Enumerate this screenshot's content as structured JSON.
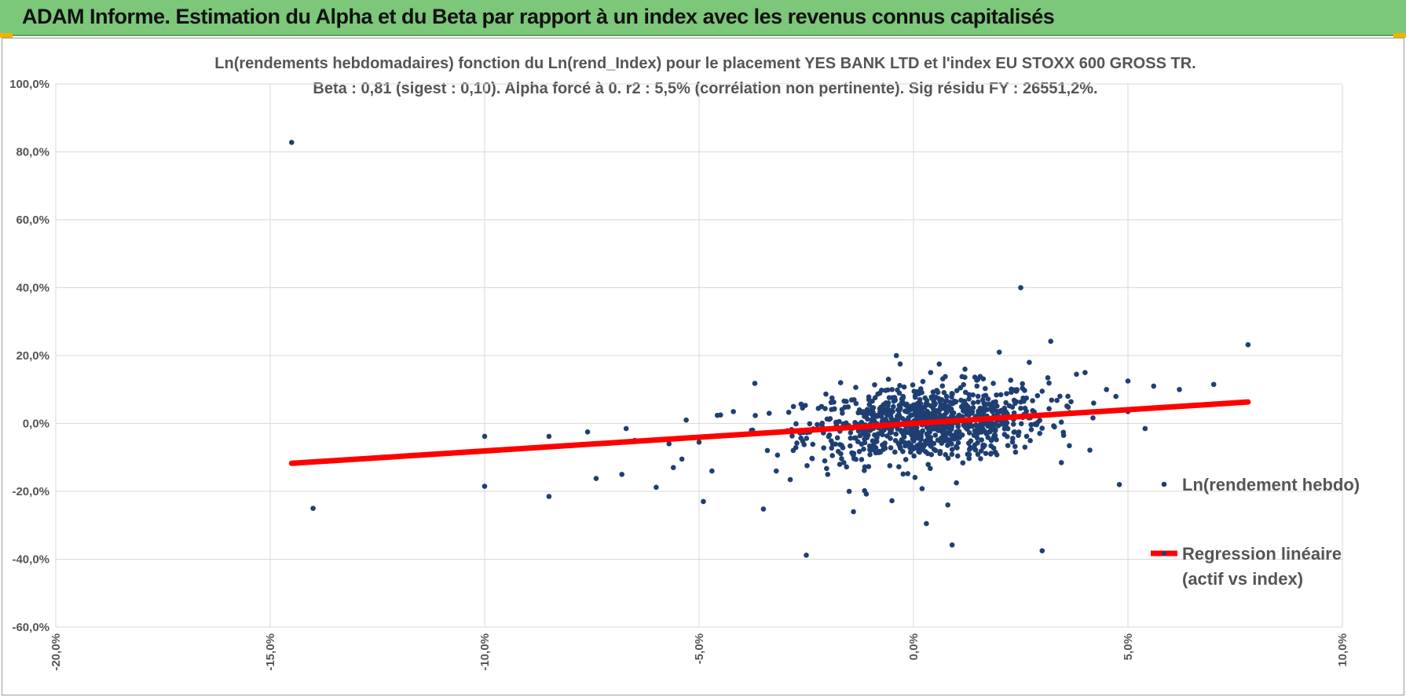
{
  "header": {
    "title": "ADAM Informe. Estimation du Alpha et du Beta par rapport à un index avec les revenus connus capitalisés"
  },
  "colors": {
    "header_bg": "#7cc77a",
    "points": "#1f3f73",
    "regression": "#ff0000",
    "grid": "#d9d9d9"
  },
  "chart_data": {
    "type": "scatter",
    "title_line1": "Ln(rendements hebdomadaires) fonction du Ln(rend_Index) pour le placement YES BANK LTD et l'index EU STOXX 600 GROSS TR.",
    "title_line2": "Beta : 0,81 (sigest : 0,10).  Alpha forcé à 0. r2 : 5,5% (corrélation non pertinente). Sig  résidu FY : 26551,2%.",
    "xlim": [
      -20,
      10
    ],
    "ylim": [
      -60,
      100
    ],
    "x_ticks": [
      -20,
      -15,
      -10,
      -5,
      0,
      5,
      10
    ],
    "x_tick_labels": [
      "-20,0%",
      "-15,0%",
      "-10,0%",
      "-5,0%",
      "0,0%",
      "5,0%",
      "10,0%"
    ],
    "y_ticks": [
      100,
      80,
      60,
      40,
      20,
      0,
      -20,
      -40,
      -60
    ],
    "y_tick_labels": [
      "100,0%",
      "80,0%",
      "60,0%",
      "40,0%",
      "20,0%",
      "0,0%",
      "-20,0%",
      "-40,0%",
      "-60,0%"
    ],
    "grid": true,
    "legend_position": "right",
    "series": [
      {
        "name": "Ln(rendement hebdo)",
        "kind": "points",
        "points": [
          [
            -14.5,
            82.8
          ],
          [
            -14.0,
            -25.0
          ],
          [
            -10.0,
            -18.5
          ],
          [
            -10.0,
            -3.8
          ],
          [
            -8.5,
            -21.5
          ],
          [
            -8.5,
            -3.8
          ],
          [
            -7.6,
            -2.5
          ],
          [
            -7.4,
            -16.2
          ],
          [
            -6.8,
            -15.0
          ],
          [
            -6.7,
            -1.5
          ],
          [
            -6.5,
            -5.0
          ],
          [
            -6.0,
            -18.8
          ],
          [
            -5.7,
            -6.0
          ],
          [
            -5.6,
            -13.0
          ],
          [
            -5.4,
            -10.5
          ],
          [
            -5.3,
            1.0
          ],
          [
            -5.0,
            -5.5
          ],
          [
            -4.9,
            -23.0
          ],
          [
            -4.7,
            -14.0
          ],
          [
            -4.5,
            2.5
          ],
          [
            -4.2,
            3.5
          ],
          [
            -3.7,
            11.8
          ],
          [
            -3.5,
            -25.2
          ],
          [
            -3.2,
            -14.0
          ],
          [
            -2.8,
            5.0
          ],
          [
            -2.5,
            -38.8
          ],
          [
            -2.0,
            -15.0
          ],
          [
            -1.9,
            7.5
          ],
          [
            -1.7,
            12.0
          ],
          [
            -1.5,
            -20.0
          ],
          [
            -1.4,
            -26.0
          ],
          [
            -1.1,
            -20.8
          ],
          [
            -0.5,
            10.0
          ],
          [
            -0.4,
            20.0
          ],
          [
            0.2,
            -19.2
          ],
          [
            0.3,
            -29.5
          ],
          [
            0.4,
            15.0
          ],
          [
            0.6,
            17.5
          ],
          [
            0.8,
            -24.0
          ],
          [
            0.9,
            -35.8
          ],
          [
            1.0,
            -17.5
          ],
          [
            1.2,
            16.0
          ],
          [
            2.0,
            21.0
          ],
          [
            2.5,
            40.0
          ],
          [
            2.7,
            18.0
          ],
          [
            3.0,
            -37.5
          ],
          [
            3.2,
            24.2
          ],
          [
            3.5,
            -3.5
          ],
          [
            3.8,
            14.5
          ],
          [
            4.0,
            15.0
          ],
          [
            4.5,
            10.0
          ],
          [
            4.8,
            -18.0
          ],
          [
            5.0,
            12.5
          ],
          [
            5.4,
            -1.5
          ],
          [
            5.6,
            11.0
          ],
          [
            6.2,
            10.0
          ],
          [
            7.0,
            11.5
          ],
          [
            7.8,
            23.2
          ],
          [
            5.0,
            3.5
          ],
          [
            4.2,
            6.0
          ],
          [
            3.6,
            8.0
          ],
          [
            3.0,
            9.5
          ],
          [
            2.6,
            4.5
          ],
          [
            2.2,
            -6.5
          ],
          [
            1.8,
            -9.0
          ],
          [
            1.5,
            13.0
          ]
        ],
        "cloud": {
          "note": "dense cluster of weekly returns around the origin",
          "x_center": 0.3,
          "x_spread": 1.4,
          "y_center": 0.0,
          "y_spread": 5.5,
          "count": 900
        }
      },
      {
        "name": "Regression linéaire\n(actif vs index)",
        "kind": "line",
        "slope": 0.81,
        "intercept": 0,
        "x_range": [
          -14.5,
          7.8
        ]
      }
    ],
    "legend": [
      {
        "label": "Ln(rendement hebdo)",
        "marker": "point"
      },
      {
        "label_line1": "Regression linéaire",
        "label_line2": "(actif vs index)",
        "marker": "line"
      }
    ]
  }
}
